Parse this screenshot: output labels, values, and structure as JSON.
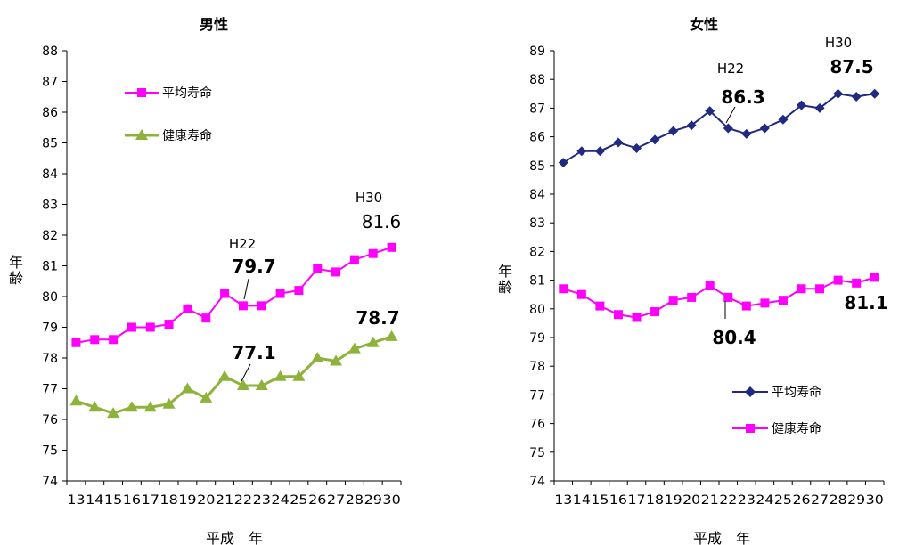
{
  "chart_data": [
    {
      "type": "line",
      "title": "男性",
      "xlabel": "平成　年",
      "ylabel": "年齢",
      "ylim": [
        74,
        88
      ],
      "yticks": [
        74,
        75,
        76,
        77,
        78,
        79,
        80,
        81,
        82,
        83,
        84,
        85,
        86,
        87,
        88
      ],
      "categories": [
        "13",
        "14",
        "15",
        "16",
        "17",
        "18",
        "19",
        "20",
        "21",
        "22",
        "23",
        "24",
        "25",
        "26",
        "27",
        "28",
        "29",
        "30"
      ],
      "grid": false,
      "legend_position": "top-left",
      "series": [
        {
          "name": "平均寿命",
          "color": "#ff00ff",
          "marker": "square",
          "values": [
            78.5,
            78.6,
            78.6,
            79.0,
            79.0,
            79.1,
            79.6,
            79.3,
            80.1,
            79.7,
            79.7,
            80.1,
            80.2,
            80.9,
            80.8,
            81.2,
            81.4,
            81.6
          ]
        },
        {
          "name": "健康寿命",
          "color": "#8db33a",
          "marker": "triangle",
          "values": [
            76.6,
            76.4,
            76.2,
            76.4,
            76.4,
            76.5,
            77.0,
            76.7,
            77.4,
            77.1,
            77.1,
            77.4,
            77.4,
            78.0,
            77.9,
            78.3,
            78.5,
            78.7
          ]
        }
      ],
      "annotations": {
        "h22": "H22",
        "h30": "H30",
        "avg_h22": "79.7",
        "avg_h30": "81.6",
        "hl_h22": "77.1",
        "hl_h30": "78.7"
      }
    },
    {
      "type": "line",
      "title": "女性",
      "xlabel": "平成　年",
      "ylabel": "年齢",
      "ylim": [
        74,
        89
      ],
      "yticks": [
        74,
        75,
        76,
        77,
        78,
        79,
        80,
        81,
        82,
        83,
        84,
        85,
        86,
        87,
        88,
        89
      ],
      "categories": [
        "13",
        "14",
        "15",
        "16",
        "17",
        "18",
        "19",
        "20",
        "21",
        "22",
        "23",
        "24",
        "25",
        "26",
        "27",
        "28",
        "29",
        "30"
      ],
      "grid": false,
      "legend_position": "bottom-right",
      "series": [
        {
          "name": "平均寿命",
          "color": "#1f2a80",
          "marker": "diamond",
          "values": [
            85.1,
            85.5,
            85.5,
            85.8,
            85.6,
            85.9,
            86.2,
            86.4,
            86.9,
            86.3,
            86.1,
            86.3,
            86.6,
            87.1,
            87.0,
            87.5,
            87.4,
            87.5
          ]
        },
        {
          "name": "健康寿命",
          "color": "#ff00ff",
          "marker": "square",
          "values": [
            80.7,
            80.5,
            80.1,
            79.8,
            79.7,
            79.9,
            80.3,
            80.4,
            80.8,
            80.4,
            80.1,
            80.2,
            80.3,
            80.7,
            80.7,
            81.0,
            80.9,
            81.1
          ]
        }
      ],
      "annotations": {
        "h22": "H22",
        "h30": "H30",
        "avg_h22": "86.3",
        "avg_h30": "87.5",
        "hl_h22": "80.4",
        "hl_h30": "81.1"
      }
    }
  ]
}
